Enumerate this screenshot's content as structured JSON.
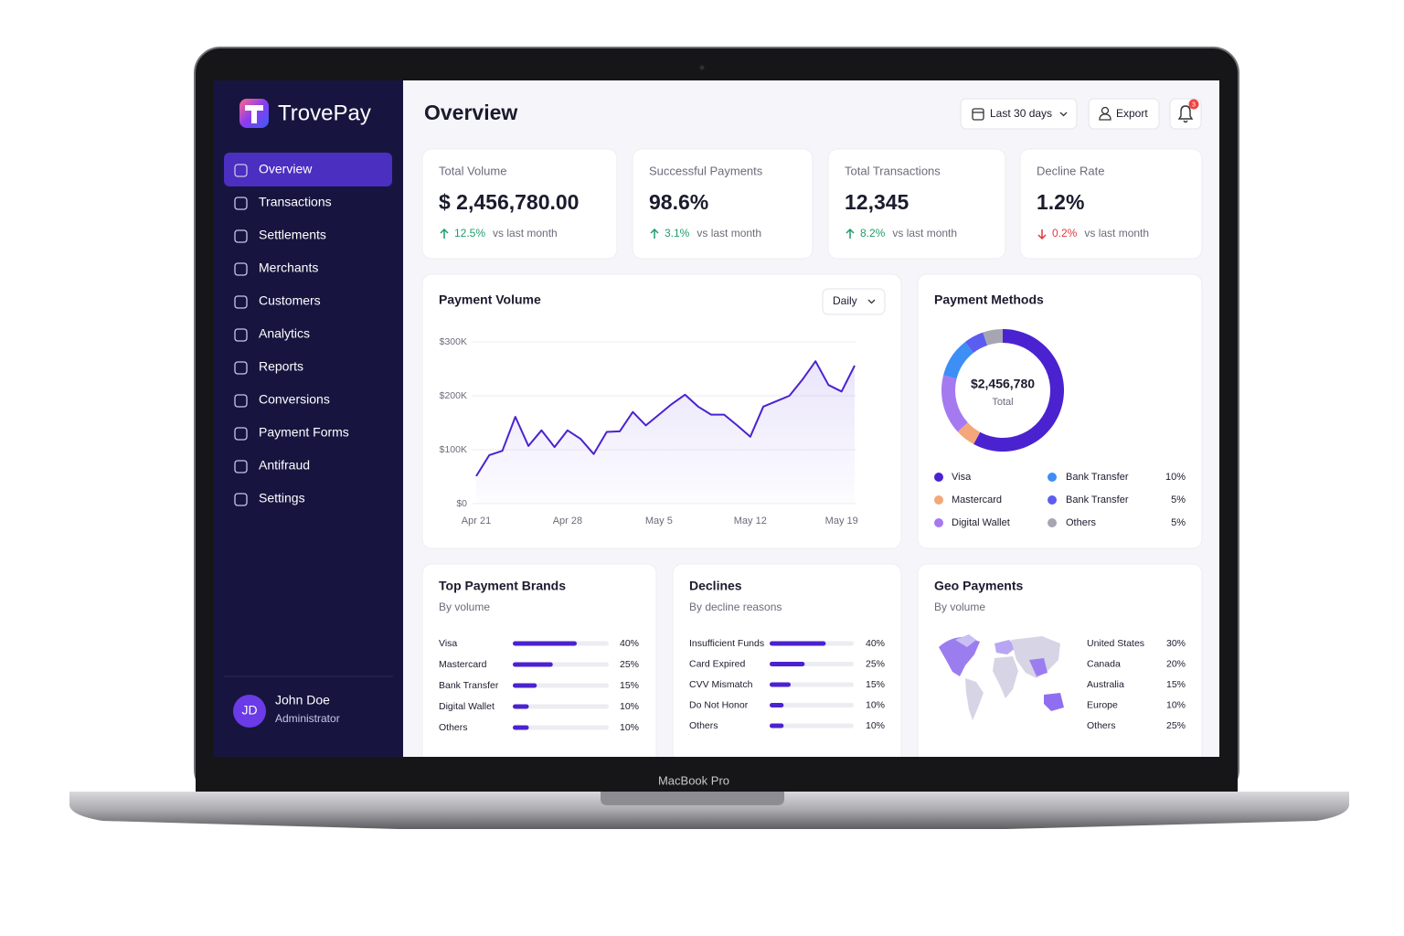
{
  "device": {
    "label": "MacBook Pro"
  },
  "sidebar": {
    "brand": "TrovePay",
    "nav": [
      "Overview",
      "Transactions",
      "Settlements",
      "Merchants",
      "Customers",
      "Analytics",
      "Reports",
      "Conversions",
      "Payment Forms",
      "Antifraud",
      "Settings"
    ],
    "user": {
      "initials": "JD",
      "name": "John Doe",
      "role": "Administrator"
    }
  },
  "header": {
    "title": "Overview",
    "date_range": "Last 30 days",
    "export": "Export",
    "notifications": "3"
  },
  "kpis": [
    {
      "label": "Total Volume",
      "value": "$ 2,456,780.00",
      "change": "12.5%",
      "trend": "up",
      "note": "vs last month"
    },
    {
      "label": "Successful Payments",
      "value": "98.6%",
      "change": "3.1%",
      "trend": "up",
      "note": "vs last month"
    },
    {
      "label": "Total Transactions",
      "value": "12,345",
      "change": "8.2%",
      "trend": "up",
      "note": "vs last month"
    },
    {
      "label": "Decline Rate",
      "value": "1.2%",
      "change": "0.2%",
      "trend": "down",
      "note": "vs last month"
    }
  ],
  "chart_data": [
    {
      "type": "line",
      "title": "Payment Volume",
      "control": "Daily",
      "categories": [
        "Apr 21",
        null,
        null,
        null,
        null,
        null,
        null,
        "Apr 28",
        null,
        null,
        null,
        null,
        null,
        null,
        "May 5",
        null,
        null,
        null,
        null,
        null,
        null,
        "May 12",
        null,
        null,
        null,
        null,
        null,
        null,
        "May 19",
        null
      ],
      "values": [
        51000,
        90000,
        98000,
        161000,
        107000,
        136000,
        105000,
        136000,
        120000,
        92000,
        133000,
        134000,
        170000,
        145000,
        165000,
        185000,
        202000,
        180000,
        165000,
        165000,
        145000,
        124000,
        180000,
        190000,
        200000,
        230000,
        264000,
        220000,
        208000,
        256000
      ],
      "color": "#4b22d0",
      "ylim": [
        0,
        300000
      ],
      "yticks": [
        {
          "value": 0,
          "label": "$0"
        },
        {
          "value": 100000,
          "label": "$100K"
        },
        {
          "value": 200000,
          "label": "$200K"
        },
        {
          "value": 300000,
          "label": "$300K"
        }
      ],
      "grid": true
    },
    {
      "type": "pie",
      "title": "Payment Methods",
      "donut": true,
      "center_value": "$2,456,780",
      "center_label": "Total",
      "segments": [
        {
          "name": "Visa",
          "color": "#4b22d0",
          "value": 55
        },
        {
          "name": "Mastercard",
          "color": "#f4a77a",
          "value": 5
        },
        {
          "name": "Digital Wallet",
          "color": "#a57af0",
          "value": 15
        },
        {
          "name": "Bank Transfer",
          "color": "#3d8ef5",
          "value": 10,
          "value_label": "10%"
        },
        {
          "name": "Bank Transfer",
          "color": "#5b5cf0",
          "value": 5,
          "value_label": "5%"
        },
        {
          "name": "Others",
          "color": "#a6a6b3",
          "value": 5,
          "value_label": "5%"
        }
      ]
    },
    {
      "type": "bar",
      "orientation": "horizontal",
      "title": "Top Payment Brands",
      "subtitle": "By volume",
      "categories": [
        "Visa",
        "Mastercard",
        "Bank Transfer",
        "Digital Wallet",
        "Others"
      ],
      "values": [
        40,
        25,
        15,
        10,
        10
      ],
      "value_labels": [
        "40%",
        "25%",
        "15%",
        "10%",
        "10%"
      ],
      "color": "#4b22d0",
      "xlim": [
        0,
        60
      ]
    },
    {
      "type": "bar",
      "orientation": "horizontal",
      "title": "Declines",
      "subtitle": "By decline reasons",
      "categories": [
        "Insufficient Funds",
        "Card Expired",
        "CVV Mismatch",
        "Do Not Honor",
        "Others"
      ],
      "values": [
        40,
        25,
        15,
        10,
        10
      ],
      "value_labels": [
        "40%",
        "25%",
        "15%",
        "10%",
        "10%"
      ],
      "color": "#4b22d0",
      "xlim": [
        0,
        60
      ]
    }
  ],
  "geo_payments": {
    "title": "Geo Payments",
    "subtitle": "By volume",
    "regions": [
      {
        "name": "United States",
        "share": "30%"
      },
      {
        "name": "Canada",
        "share": "20%"
      },
      {
        "name": "Australia",
        "share": "15%"
      },
      {
        "name": "Europe",
        "share": "10%"
      },
      {
        "name": "Others",
        "share": "25%"
      }
    ]
  }
}
